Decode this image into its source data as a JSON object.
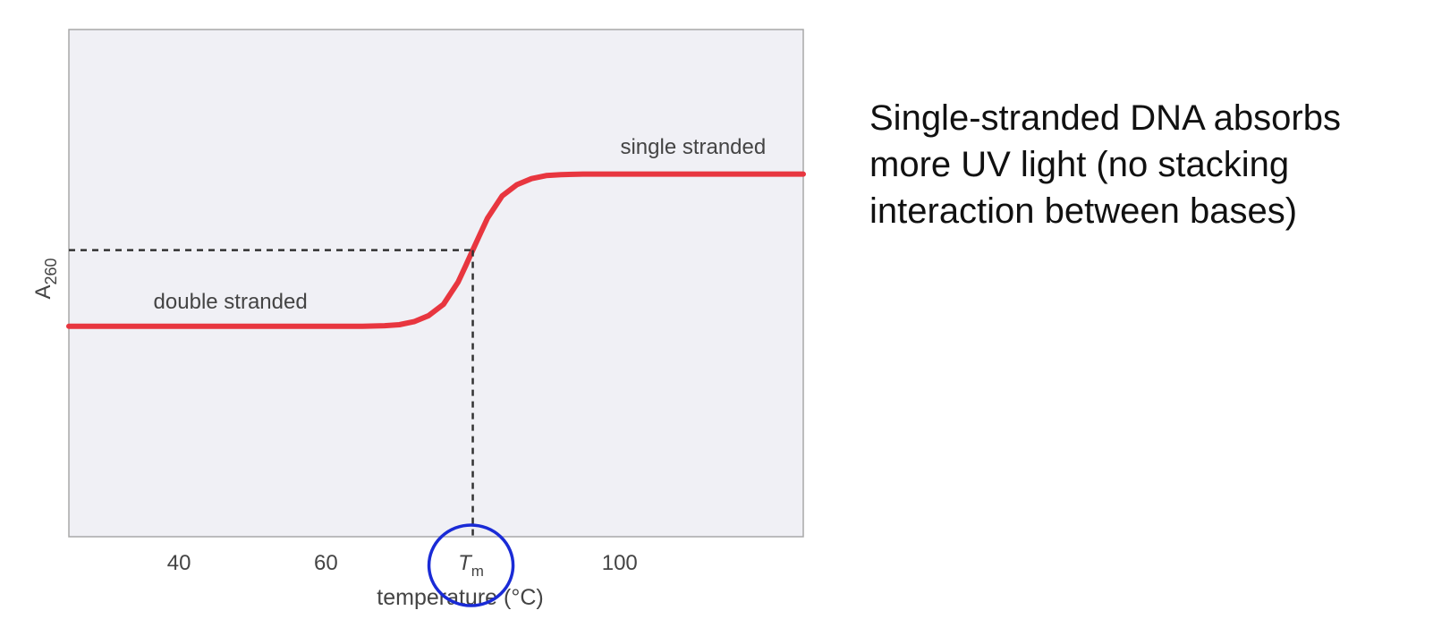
{
  "chart_data": {
    "type": "line",
    "xlabel": "temperature (°C)",
    "ylabel": "A",
    "ylabel_subscript": "260",
    "xlim": [
      25,
      125
    ],
    "ylim": [
      0,
      1
    ],
    "x_ticks": [
      {
        "value": 40,
        "label": "40"
      },
      {
        "value": 60,
        "label": "60"
      },
      {
        "value": 100,
        "label": "100"
      }
    ],
    "tm": {
      "value": 80,
      "label": "T",
      "subscript": "m",
      "y": 0.565
    },
    "series": [
      {
        "color": "#e8363f",
        "x": [
          25,
          30,
          35,
          40,
          45,
          50,
          55,
          60,
          65,
          68,
          70,
          72,
          74,
          76,
          78,
          79,
          80,
          81,
          82,
          84,
          86,
          88,
          90,
          92,
          95,
          100,
          105,
          110,
          115,
          120,
          125
        ],
        "y": [
          0.415,
          0.415,
          0.415,
          0.415,
          0.415,
          0.415,
          0.415,
          0.415,
          0.415,
          0.416,
          0.418,
          0.424,
          0.436,
          0.458,
          0.502,
          0.533,
          0.565,
          0.597,
          0.628,
          0.672,
          0.694,
          0.706,
          0.712,
          0.714,
          0.715,
          0.715,
          0.715,
          0.715,
          0.715,
          0.715,
          0.715
        ]
      }
    ],
    "annotations": [
      {
        "text": "double stranded",
        "x": 47,
        "y": 0.45
      },
      {
        "text": "single stranded",
        "x": 110,
        "y": 0.755
      }
    ],
    "grid": false,
    "background": "#f0f0f5",
    "highlight_color": "#1a2bd6"
  },
  "side_note": {
    "lines": [
      "Single-stranded DNA absorbs",
      "more UV light (no stacking",
      "interaction between bases)"
    ]
  }
}
